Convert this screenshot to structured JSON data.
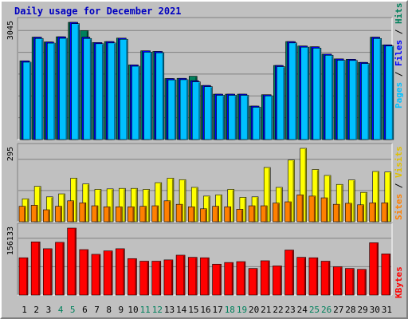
{
  "title": "Daily usage for December 2021",
  "chart_data": [
    {
      "type": "bar",
      "name": "hits-files-pages",
      "categories": [
        "1",
        "2",
        "3",
        "4",
        "5",
        "6",
        "7",
        "8",
        "9",
        "10",
        "11",
        "12",
        "13",
        "14",
        "15",
        "16",
        "17",
        "18",
        "19",
        "20",
        "21",
        "22",
        "23",
        "24",
        "25",
        "26",
        "27",
        "28",
        "29",
        "30",
        "31"
      ],
      "weekend_days": [
        "4",
        "5",
        "11",
        "12",
        "18",
        "19",
        "25",
        "26"
      ],
      "ymax_label": "3045",
      "ylim": [
        0,
        3045
      ],
      "series": [
        {
          "name": "Hits",
          "color": "#00805c",
          "values": [
            2045,
            2660,
            2535,
            2670,
            3045,
            2830,
            2520,
            2545,
            2635,
            1940,
            2305,
            2290,
            1585,
            1590,
            1645,
            1405,
            1180,
            1180,
            1180,
            870,
            1165,
            1925,
            2545,
            2430,
            2410,
            2220,
            2095,
            2085,
            2005,
            2660,
            2460
          ]
        },
        {
          "name": "Files",
          "color": "#0000ff",
          "values": [
            2045,
            2660,
            2535,
            2670,
            3045,
            2660,
            2520,
            2545,
            2635,
            1940,
            2305,
            2290,
            1585,
            1590,
            1530,
            1405,
            1180,
            1180,
            1180,
            870,
            1165,
            1925,
            2545,
            2430,
            2410,
            2220,
            2095,
            2085,
            2005,
            2660,
            2460
          ]
        },
        {
          "name": "Pages",
          "color": "#00c0ff",
          "values": [
            2010,
            2625,
            2505,
            2630,
            3010,
            2625,
            2490,
            2510,
            2605,
            1905,
            2270,
            2255,
            1550,
            1555,
            1500,
            1375,
            1150,
            1150,
            1150,
            840,
            1135,
            1895,
            2510,
            2400,
            2375,
            2190,
            2060,
            2055,
            1975,
            2625,
            2430
          ]
        }
      ]
    },
    {
      "type": "bar",
      "name": "visits-sites",
      "categories": [
        "1",
        "2",
        "3",
        "4",
        "5",
        "6",
        "7",
        "8",
        "9",
        "10",
        "11",
        "12",
        "13",
        "14",
        "15",
        "16",
        "17",
        "18",
        "19",
        "20",
        "21",
        "22",
        "23",
        "24",
        "25",
        "26",
        "27",
        "28",
        "29",
        "30",
        "31"
      ],
      "weekend_days": [
        "4",
        "5",
        "11",
        "12",
        "18",
        "19",
        "25",
        "26"
      ],
      "ymax_label": "295",
      "ylim": [
        0,
        295
      ],
      "series": [
        {
          "name": "Visits",
          "color": "#ffff00",
          "values": [
            92,
            142,
            100,
            112,
            175,
            152,
            130,
            132,
            134,
            134,
            130,
            157,
            175,
            169,
            138,
            103,
            108,
            130,
            98,
            100,
            218,
            138,
            248,
            295,
            210,
            186,
            150,
            168,
            118,
            202,
            200
          ]
        },
        {
          "name": "Sites",
          "color": "#ff8000",
          "values": [
            62,
            66,
            48,
            62,
            84,
            76,
            64,
            60,
            60,
            60,
            62,
            64,
            84,
            70,
            60,
            52,
            62,
            60,
            50,
            64,
            64,
            75,
            80,
            108,
            103,
            96,
            70,
            74,
            68,
            76,
            76
          ]
        }
      ]
    },
    {
      "type": "bar",
      "name": "kbytes",
      "categories": [
        "1",
        "2",
        "3",
        "4",
        "5",
        "6",
        "7",
        "8",
        "9",
        "10",
        "11",
        "12",
        "13",
        "14",
        "15",
        "16",
        "17",
        "18",
        "19",
        "20",
        "21",
        "22",
        "23",
        "24",
        "25",
        "26",
        "27",
        "28",
        "29",
        "30",
        "31"
      ],
      "weekend_days": [
        "4",
        "5",
        "11",
        "12",
        "18",
        "19",
        "25",
        "26"
      ],
      "ymax_label": "156133",
      "ylim": [
        0,
        156133
      ],
      "series": [
        {
          "name": "KBytes",
          "color": "#ff0000",
          "values": [
            87000,
            124000,
            108000,
            123000,
            156133,
            106000,
            95000,
            103000,
            108000,
            85000,
            79000,
            79000,
            82000,
            93000,
            88000,
            87000,
            72000,
            76000,
            78000,
            62000,
            80000,
            68000,
            105000,
            88000,
            87000,
            79000,
            66000,
            62000,
            60000,
            122000,
            96000
          ]
        }
      ]
    }
  ],
  "legend": {
    "top": [
      {
        "text": "Pages",
        "color": "#00c0ff"
      },
      {
        "text": " / ",
        "color": "#000000"
      },
      {
        "text": "Files",
        "color": "#0000ff"
      },
      {
        "text": " / ",
        "color": "#000000"
      },
      {
        "text": "Hits",
        "color": "#00805c"
      }
    ],
    "middle": [
      {
        "text": "Sites",
        "color": "#ff8000"
      },
      {
        "text": " / ",
        "color": "#000000"
      },
      {
        "text": "Visits",
        "color": "#e0c000"
      }
    ],
    "bottom": [
      {
        "text": "KBytes",
        "color": "#ff0000"
      }
    ]
  },
  "axis_colors": {
    "weekday": "#000000",
    "weekend": "#00805c"
  }
}
